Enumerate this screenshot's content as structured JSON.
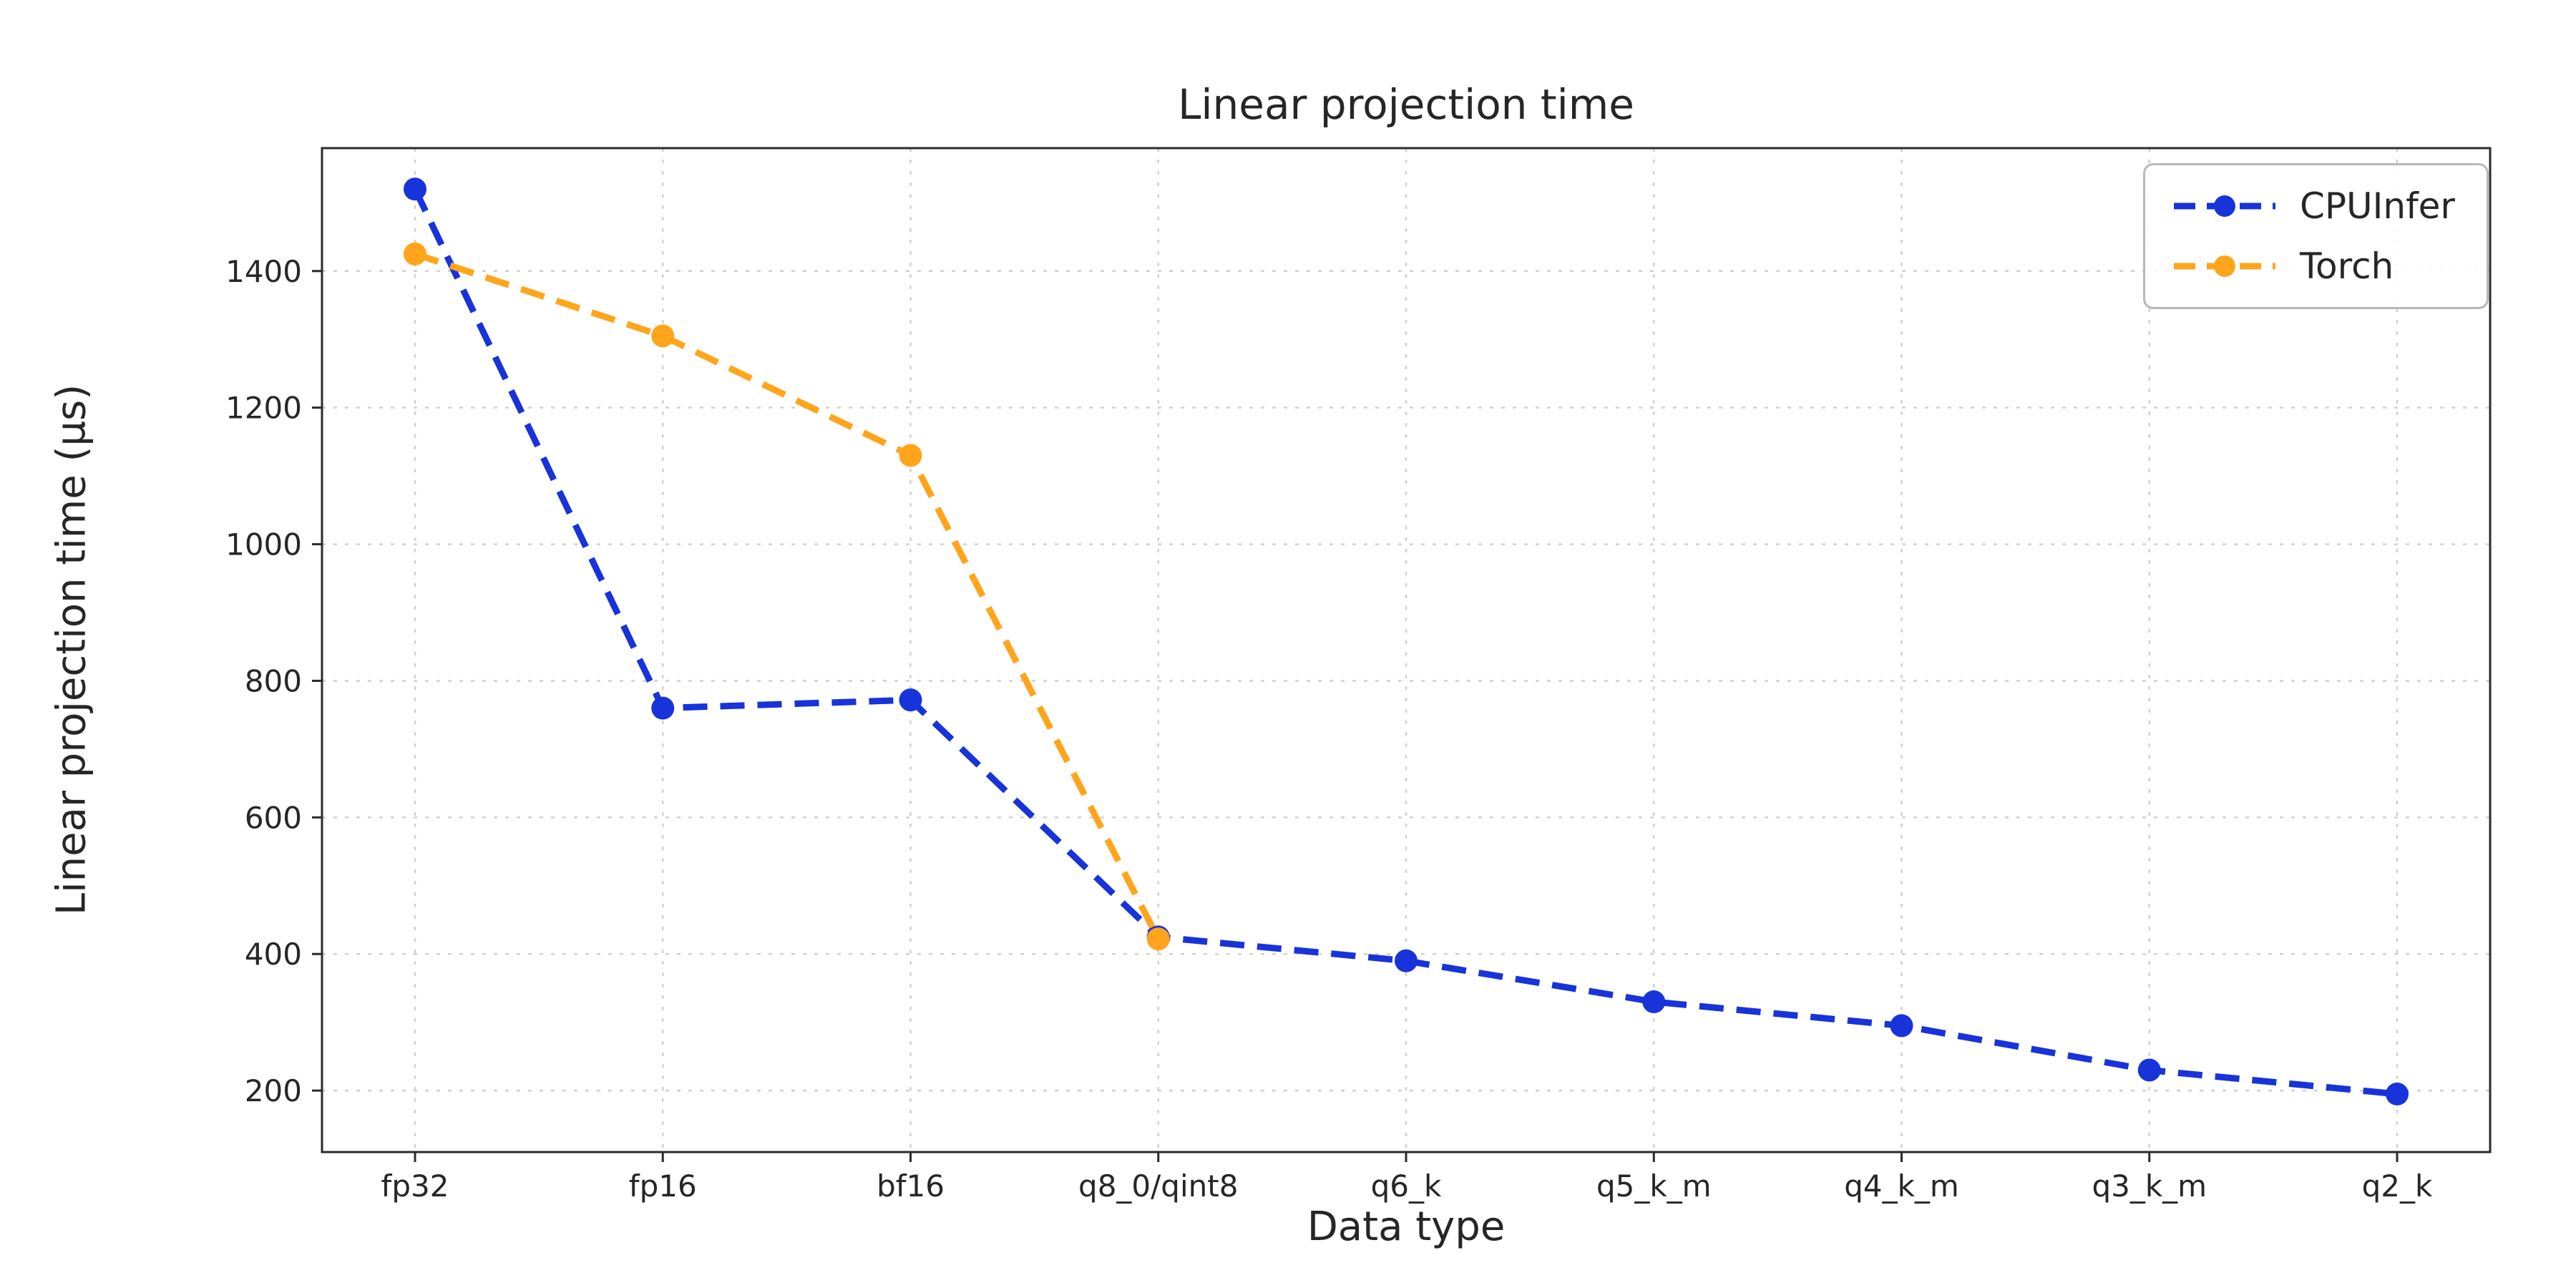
{
  "chart_data": {
    "type": "line",
    "title": "Linear projection time",
    "xlabel": "Data type",
    "ylabel": "Linear projection time (µs)",
    "categories": [
      "fp32",
      "fp16",
      "bf16",
      "q8_0/qint8",
      "q6_k",
      "q5_k_m",
      "q4_k_m",
      "q3_k_m",
      "q2_k"
    ],
    "series": [
      {
        "name": "CPUInfer",
        "color": "#1733d9",
        "values": [
          1520,
          760,
          772,
          425,
          390,
          330,
          295,
          230,
          195
        ]
      },
      {
        "name": "Torch",
        "color": "#ffa51c",
        "values": [
          1425,
          1305,
          1130,
          422,
          null,
          null,
          null,
          null,
          null
        ]
      }
    ],
    "yticks": [
      200,
      400,
      600,
      800,
      1000,
      1200,
      1400
    ],
    "ylim": [
      110,
      1580
    ],
    "grid": true,
    "grid_color": "#d0d0d0",
    "spine_color": "#2b2b2b",
    "tick_color": "#262626",
    "line_style": "dashed",
    "marker": "circle",
    "legend_position": "upper right"
  }
}
